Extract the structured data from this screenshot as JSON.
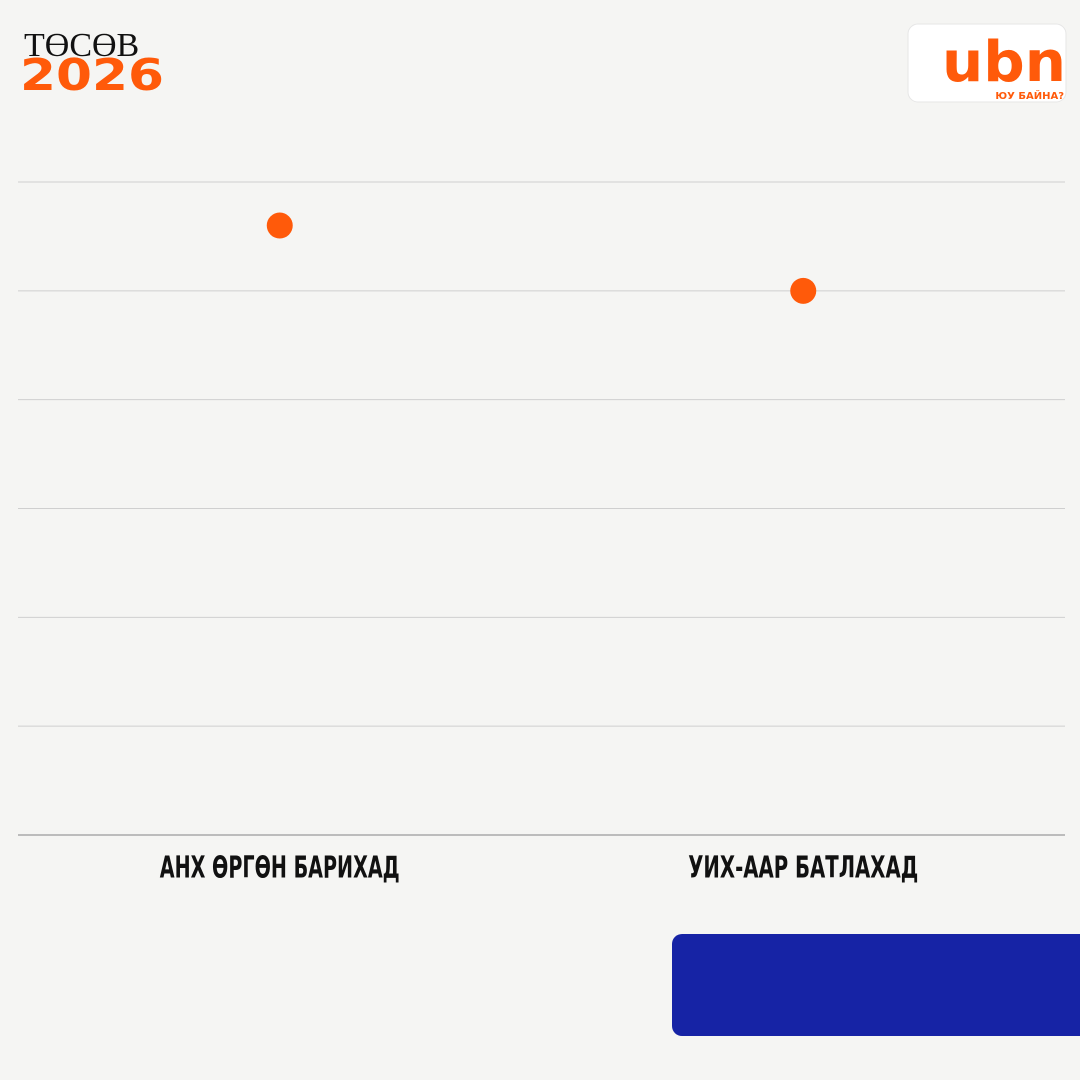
{
  "chart_data": {
    "type": "scatter",
    "title": "ТӨСӨВ",
    "subtitle": "2026",
    "categories": [
      "АНХ ӨРГӨН БАРИХАД",
      "УИХ-ААР БАТЛАХАД"
    ],
    "values": [
      5.6,
      5.0
    ],
    "color": "#ff5a0a",
    "ylim": [
      0,
      6
    ],
    "yticks": [
      0,
      1,
      2,
      3,
      4,
      5,
      6
    ],
    "grid": true
  },
  "logo": {
    "text": "ubn",
    "tagline": "ЮУ БАЙНА?"
  }
}
